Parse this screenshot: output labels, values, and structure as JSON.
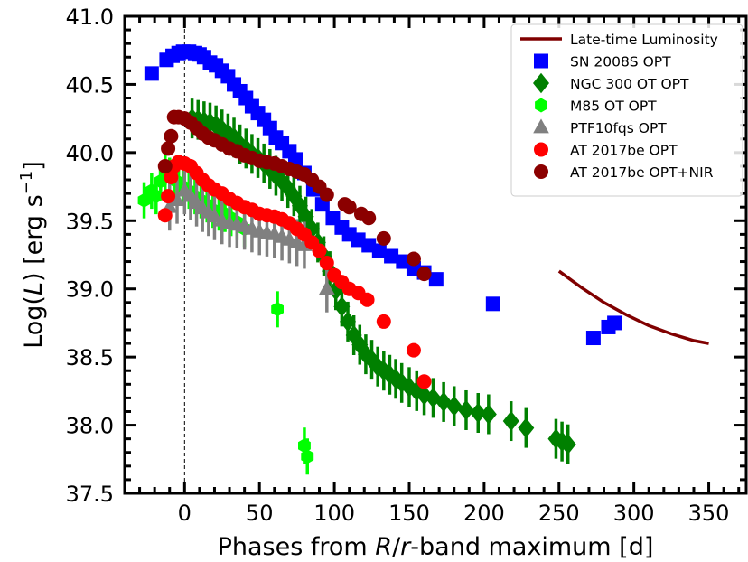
{
  "chart_data": {
    "type": "scatter",
    "title": "",
    "xlabel": {
      "prefix": "Phases from ",
      "italic": "R",
      "mid": "/",
      "italic2": "r",
      "suffix": "-band maximum [d]"
    },
    "ylabel": {
      "prefix": "Log(",
      "italic": "L",
      "mid": ") [erg s",
      "sup": "−1",
      "suffix": "]"
    },
    "xlim": [
      -40,
      375
    ],
    "ylim": [
      37.5,
      41.0
    ],
    "xticks": [
      0,
      50,
      100,
      150,
      200,
      250,
      300,
      350
    ],
    "yticks": [
      37.5,
      38.0,
      38.5,
      39.0,
      39.5,
      40.0,
      40.5,
      41.0
    ],
    "ytick_labels": [
      "37.5",
      "38.0",
      "38.5",
      "39.0",
      "39.5",
      "40.0",
      "40.5",
      "41.0"
    ],
    "reference_line_x": 0,
    "legend_position": "top-right",
    "series": [
      {
        "name": "Late-time Luminosity",
        "kind": "line",
        "color": "#800000",
        "x": [
          250,
          265,
          280,
          295,
          310,
          325,
          340,
          350
        ],
        "y": [
          39.13,
          39.01,
          38.9,
          38.81,
          38.73,
          38.67,
          38.62,
          38.6
        ]
      },
      {
        "name": "SN 2008S OPT",
        "kind": "square",
        "color": "#0000ff",
        "x": [
          -22,
          -12,
          -8,
          -4,
          -1,
          3,
          7,
          10,
          13,
          17,
          21,
          25,
          29,
          33,
          37,
          41,
          45,
          49,
          53,
          57,
          61,
          65,
          70,
          74,
          80,
          86,
          92,
          99,
          105,
          110,
          116,
          123,
          130,
          138,
          146,
          153,
          160,
          168,
          206,
          273,
          283,
          287
        ],
        "y": [
          40.58,
          40.68,
          40.71,
          40.73,
          40.74,
          40.74,
          40.73,
          40.72,
          40.7,
          40.66,
          40.64,
          40.6,
          40.56,
          40.5,
          40.45,
          40.4,
          40.34,
          40.29,
          40.24,
          40.18,
          40.11,
          40.07,
          40.01,
          39.95,
          39.85,
          39.73,
          39.62,
          39.52,
          39.45,
          39.4,
          39.36,
          39.32,
          39.28,
          39.24,
          39.2,
          39.15,
          39.12,
          39.07,
          38.89,
          38.64,
          38.72,
          38.75
        ]
      },
      {
        "name": "NGC 300 OT OPT",
        "kind": "diamond",
        "color": "#008000",
        "x": [
          5,
          9,
          13,
          17,
          21,
          25,
          29,
          33,
          37,
          41,
          45,
          49,
          53,
          57,
          61,
          65,
          69,
          73,
          77,
          81,
          85,
          89,
          93,
          97,
          101,
          105,
          109,
          113,
          117,
          121,
          125,
          129,
          133,
          137,
          141,
          145,
          150,
          155,
          160,
          166,
          173,
          180,
          188,
          196,
          203,
          218,
          228,
          248,
          252,
          256
        ],
        "y": [
          40.25,
          40.24,
          40.23,
          40.22,
          40.2,
          40.17,
          40.14,
          40.11,
          40.06,
          40.03,
          39.99,
          39.96,
          39.92,
          39.88,
          39.83,
          39.79,
          39.74,
          39.68,
          39.61,
          39.53,
          39.44,
          39.34,
          39.24,
          39.13,
          38.99,
          38.87,
          38.76,
          38.66,
          38.59,
          38.52,
          38.48,
          38.43,
          38.4,
          38.37,
          38.34,
          38.31,
          38.28,
          38.25,
          38.22,
          38.2,
          38.17,
          38.14,
          38.11,
          38.09,
          38.08,
          38.03,
          37.98,
          37.9,
          37.88,
          37.86
        ]
      },
      {
        "name": "M85 OT OPT",
        "kind": "hexagon",
        "color": "#00ff00",
        "x": [
          -27,
          -22,
          -19,
          -16,
          -13,
          -10,
          -7,
          -4,
          -1,
          3,
          7,
          11,
          15,
          19,
          23,
          27,
          31,
          35,
          40,
          62,
          80,
          82
        ],
        "y": [
          39.65,
          39.72,
          39.68,
          39.79,
          39.85,
          39.83,
          39.8,
          39.78,
          39.75,
          39.72,
          39.68,
          39.65,
          39.62,
          39.58,
          39.56,
          39.55,
          39.52,
          39.49,
          39.44,
          38.85,
          37.85,
          37.77
        ]
      },
      {
        "name": "PTF10fqs OPT",
        "kind": "triangle",
        "color": "#808080",
        "x": [
          -10,
          -5,
          0,
          4,
          8,
          12,
          16,
          20,
          25,
          30,
          35,
          40,
          45,
          50,
          55,
          60,
          65,
          70,
          75,
          80,
          95
        ],
        "y": [
          39.6,
          39.65,
          39.72,
          39.68,
          39.63,
          39.59,
          39.56,
          39.53,
          39.5,
          39.48,
          39.47,
          39.46,
          39.44,
          39.42,
          39.41,
          39.4,
          39.38,
          39.36,
          39.34,
          39.32,
          39.0
        ]
      },
      {
        "name": "AT 2017be OPT",
        "kind": "circle",
        "color": "#ff0000",
        "x": [
          -13,
          -11,
          -9,
          -7,
          -4,
          0,
          4,
          8,
          12,
          16,
          20,
          25,
          30,
          35,
          40,
          45,
          50,
          55,
          60,
          65,
          70,
          75,
          80,
          85,
          90,
          95,
          100,
          105,
          110,
          116,
          122,
          133,
          153,
          160
        ],
        "y": [
          39.54,
          39.68,
          39.82,
          39.9,
          39.93,
          39.92,
          39.9,
          39.85,
          39.8,
          39.76,
          39.73,
          39.7,
          39.66,
          39.63,
          39.6,
          39.58,
          39.55,
          39.54,
          39.53,
          39.51,
          39.48,
          39.44,
          39.4,
          39.34,
          39.28,
          39.19,
          39.1,
          39.05,
          39.0,
          38.97,
          38.92,
          38.76,
          38.55,
          38.32
        ]
      },
      {
        "name": "AT 2017be OPT+NIR",
        "kind": "circle",
        "color": "#8b0000",
        "x": [
          -13,
          -11,
          -9,
          -7,
          -4,
          0,
          4,
          8,
          12,
          16,
          20,
          25,
          30,
          35,
          40,
          45,
          50,
          55,
          60,
          65,
          70,
          75,
          80,
          85,
          90,
          95,
          107,
          110,
          118,
          123,
          133,
          153,
          160
        ],
        "y": [
          39.9,
          40.03,
          40.12,
          40.26,
          40.26,
          40.25,
          40.22,
          40.18,
          40.14,
          40.11,
          40.09,
          40.06,
          40.03,
          40.01,
          39.98,
          39.96,
          39.94,
          39.93,
          39.92,
          39.9,
          39.88,
          39.86,
          39.84,
          39.8,
          39.75,
          39.69,
          39.62,
          39.6,
          39.55,
          39.52,
          39.37,
          39.22,
          39.11
        ]
      }
    ]
  }
}
